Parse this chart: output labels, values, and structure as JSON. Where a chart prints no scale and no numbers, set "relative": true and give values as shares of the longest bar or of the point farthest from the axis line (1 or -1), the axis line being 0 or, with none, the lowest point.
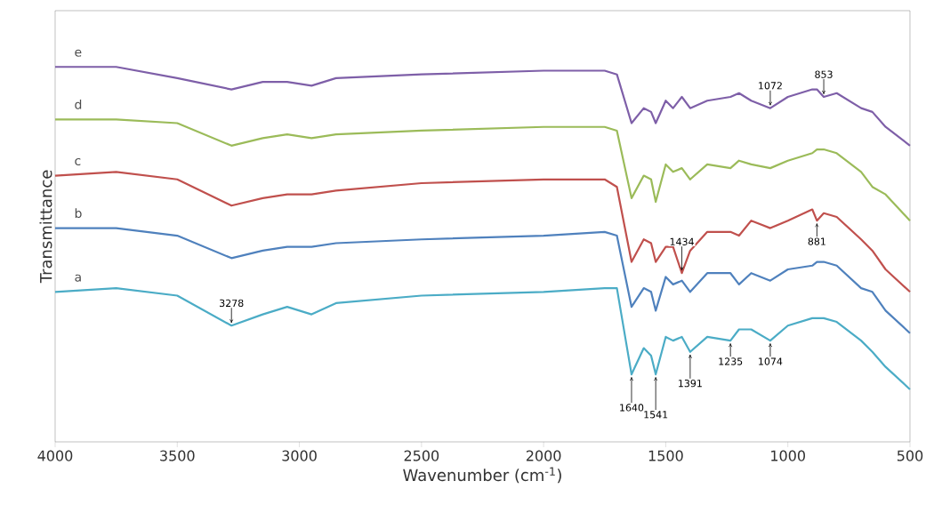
{
  "chart_data": {
    "type": "line",
    "relative": true,
    "xlabel": "Wavenumber (cm$^{-1}$)",
    "ylabel": "Transmittance",
    "xlim": [
      4000,
      500
    ],
    "xticks": [
      4000,
      3500,
      3000,
      2500,
      2000,
      1500,
      1000,
      500
    ],
    "x": [
      4000,
      3750,
      3500,
      3278,
      3150,
      3050,
      2950,
      2850,
      2500,
      2000,
      1750,
      1700,
      1640,
      1590,
      1560,
      1541,
      1500,
      1470,
      1434,
      1400,
      1330,
      1235,
      1200,
      1150,
      1072,
      1000,
      900,
      881,
      853,
      800,
      700,
      654,
      600,
      500
    ],
    "series": [
      {
        "name": "e",
        "color": "#7e5fa8",
        "values": [
          1.0,
          1.0,
          0.97,
          0.94,
          0.96,
          0.96,
          0.95,
          0.97,
          0.98,
          0.99,
          0.99,
          0.98,
          0.85,
          0.89,
          0.88,
          0.85,
          0.91,
          0.89,
          0.92,
          0.89,
          0.91,
          0.92,
          0.93,
          0.91,
          0.89,
          0.92,
          0.94,
          0.94,
          0.92,
          0.93,
          0.89,
          0.88,
          0.84,
          0.79
        ]
      },
      {
        "name": "d",
        "color": "#9bbb59",
        "values": [
          0.86,
          0.86,
          0.85,
          0.79,
          0.81,
          0.82,
          0.81,
          0.82,
          0.83,
          0.84,
          0.84,
          0.83,
          0.65,
          0.71,
          0.7,
          0.64,
          0.74,
          0.72,
          0.73,
          0.7,
          0.74,
          0.73,
          0.75,
          0.74,
          0.73,
          0.75,
          0.77,
          0.78,
          0.78,
          0.77,
          0.72,
          0.68,
          0.66,
          0.59
        ]
      },
      {
        "name": "c",
        "color": "#c0504d",
        "values": [
          0.71,
          0.72,
          0.7,
          0.63,
          0.65,
          0.66,
          0.66,
          0.67,
          0.69,
          0.7,
          0.7,
          0.68,
          0.48,
          0.54,
          0.53,
          0.48,
          0.52,
          0.52,
          0.45,
          0.51,
          0.56,
          0.56,
          0.55,
          0.59,
          0.57,
          0.59,
          0.62,
          0.59,
          0.61,
          0.6,
          0.54,
          0.51,
          0.46,
          0.4
        ]
      },
      {
        "name": "b",
        "color": "#4f81bd",
        "values": [
          0.57,
          0.57,
          0.55,
          0.49,
          0.51,
          0.52,
          0.52,
          0.53,
          0.54,
          0.55,
          0.56,
          0.55,
          0.36,
          0.41,
          0.4,
          0.35,
          0.44,
          0.42,
          0.43,
          0.4,
          0.45,
          0.45,
          0.42,
          0.45,
          0.43,
          0.46,
          0.47,
          0.48,
          0.48,
          0.47,
          0.41,
          0.4,
          0.35,
          0.29
        ]
      },
      {
        "name": "a",
        "color": "#4bacc6",
        "values": [
          0.4,
          0.41,
          0.39,
          0.31,
          0.34,
          0.36,
          0.34,
          0.37,
          0.39,
          0.4,
          0.41,
          0.41,
          0.18,
          0.25,
          0.23,
          0.18,
          0.28,
          0.27,
          0.28,
          0.24,
          0.28,
          0.27,
          0.3,
          0.3,
          0.27,
          0.31,
          0.33,
          0.33,
          0.33,
          0.32,
          0.27,
          0.24,
          0.2,
          0.14
        ]
      }
    ],
    "annotations": [
      {
        "text": "3278",
        "x": 3278,
        "y": 0.31
      },
      {
        "text": "1072",
        "x": 1072,
        "y": 0.89
      },
      {
        "text": "853",
        "x": 853,
        "y": 0.92
      },
      {
        "text": "1434",
        "x": 1434,
        "y": 0.45
      },
      {
        "text": "881",
        "x": 881,
        "y": 0.59
      },
      {
        "text": "1640",
        "x": 1640,
        "y": 0.18
      },
      {
        "text": "1541",
        "x": 1541,
        "y": 0.18
      },
      {
        "text": "1391",
        "x": 1400,
        "y": 0.24
      },
      {
        "text": "1235",
        "x": 1235,
        "y": 0.27
      },
      {
        "text": "1074",
        "x": 1072,
        "y": 0.27
      }
    ]
  }
}
